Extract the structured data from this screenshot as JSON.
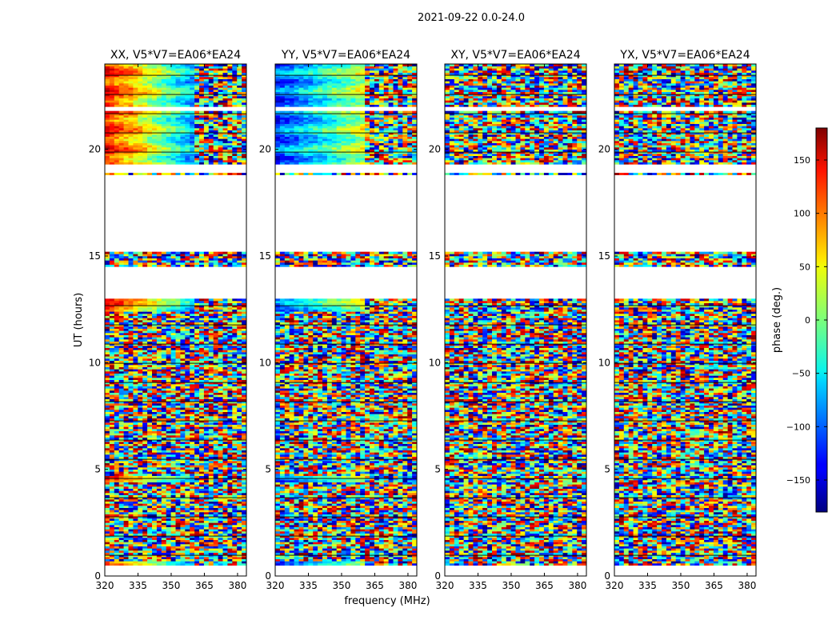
{
  "chart_data": {
    "type": "heatmap",
    "title": "2021-09-22 0.0-24.0",
    "xlabel": "frequency (MHz)",
    "ylabel": "UT (hours)",
    "xlim": [
      320,
      384
    ],
    "ylim": [
      0,
      24
    ],
    "xticks": [
      "320",
      "335",
      "350",
      "365",
      "380"
    ],
    "yticks": [
      "0",
      "5",
      "10",
      "15",
      "20"
    ],
    "panels": [
      {
        "name": "XX, V5*V7=EA06*EA24"
      },
      {
        "name": "YY, V5*V7=EA06*EA24"
      },
      {
        "name": "XY, V5*V7=EA06*EA24"
      },
      {
        "name": "YX, V5*V7=EA06*EA24"
      }
    ],
    "flagged_intervals_ut": [
      [
        0,
        0.5
      ],
      [
        18.4,
        18.8
      ],
      [
        18.95,
        19.3
      ],
      [
        21.8,
        22.0
      ],
      [
        13.0,
        14.5
      ],
      [
        15.2,
        18.4
      ]
    ],
    "colorbar": {
      "label": "phase (deg.)",
      "range": [
        -180,
        180
      ],
      "ticks": [
        "150",
        "100",
        "50",
        "0",
        "−50",
        "−100",
        "−150"
      ],
      "colormap": "jet"
    }
  }
}
